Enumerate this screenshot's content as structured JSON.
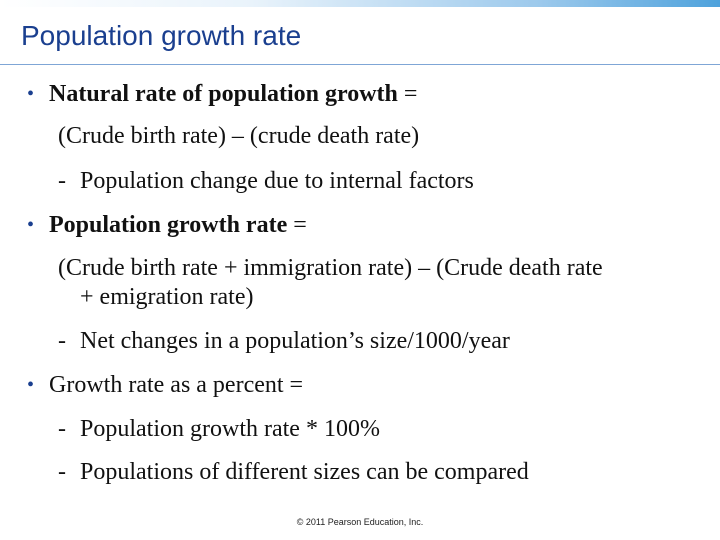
{
  "slide": {
    "title": "Population growth rate",
    "bullets": [
      {
        "lead": "Natural rate of population growth",
        "tail": " =",
        "formula": "(Crude birth rate) – (crude death rate)",
        "sub": "Population change due to internal factors"
      },
      {
        "lead": "Population growth rate",
        "tail": " =",
        "formula_line1": "(Crude birth rate + immigration rate) – (Crude death rate",
        "formula_line2": "+ emigration rate)",
        "sub": "Net changes in a population’s size/1000/year"
      },
      {
        "text": "Growth rate as a percent =",
        "sub1": "Population growth rate * 100%",
        "sub2": "Populations of different sizes can be compared"
      }
    ],
    "bullet_symbol": "•",
    "dash_symbol": "-",
    "footer": "© 2011 Pearson Education, Inc."
  },
  "colors": {
    "title": "#1a3f8f",
    "text": "#111111",
    "accent_bar": "#4ea2dc"
  }
}
